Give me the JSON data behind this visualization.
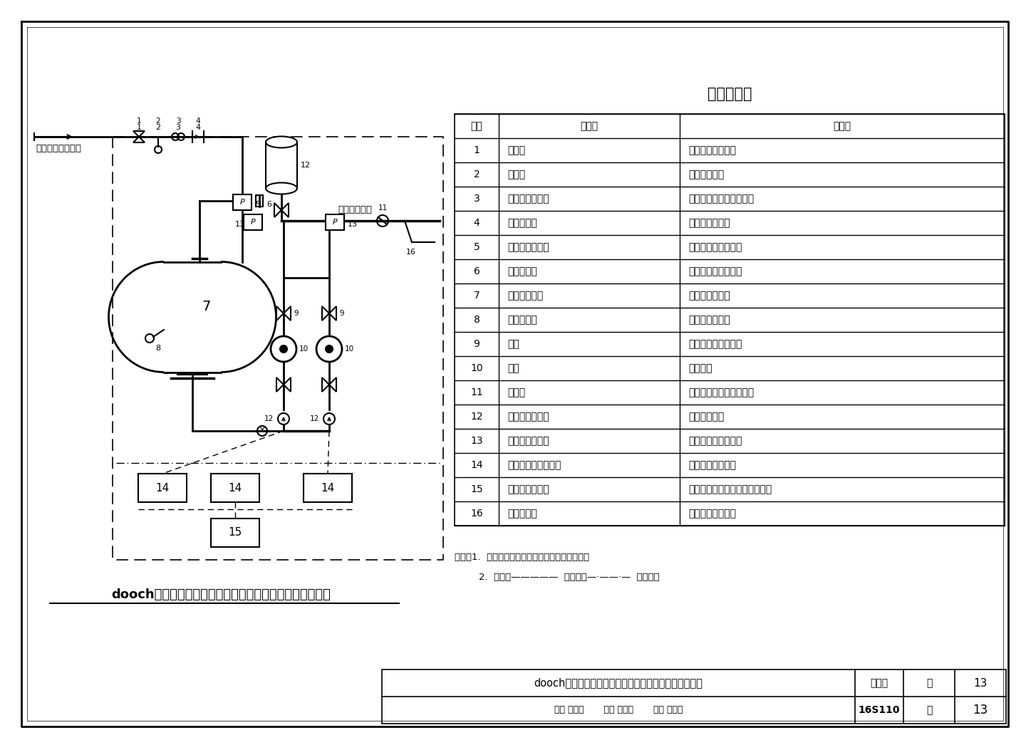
{
  "title": "dooch系列罐式全变频叠压供水设备基本组成及控制原理图",
  "table_title": "主要部件表",
  "table_headers": [
    "序号",
    "名　称",
    "用　途"
  ],
  "table_rows": [
    [
      "1",
      "控制阀",
      "进水总管控制阀门"
    ],
    [
      "2",
      "过滤器",
      "过滤管网进水"
    ],
    [
      "3",
      "可曲挠橡胶接头",
      "隔振、便于管路拆卸检修"
    ],
    [
      "4",
      "倒流防止器",
      "防止增压水回流"
    ],
    [
      "5",
      "进水压力传感器",
      "检测设备进水管压力"
    ],
    [
      "6",
      "真空抑制器",
      "防止稳流罐抽吸真空"
    ],
    [
      "7",
      "不锈钢稳流罐",
      "水泵吸水管稳流"
    ],
    [
      "8",
      "液位传感器",
      "检测稳流罐液位"
    ],
    [
      "9",
      "阀门",
      "水泵进、出水控制阀"
    ],
    [
      "10",
      "水泵",
      "增压供水"
    ],
    [
      "11",
      "止回阀",
      "防止用户管网压力水回流"
    ],
    [
      "12",
      "胶囊式气压水罐",
      "稳定系统压力"
    ],
    [
      "13",
      "出水压力传感器",
      "检测设备出水管压力"
    ],
    [
      "14",
      "数字集成变频控制器",
      "控制水泵变频运行"
    ],
    [
      "15",
      "自动控制触摸屏",
      "设定、调整及显示设备运行参数"
    ],
    [
      "16",
      "消毒器接口",
      "供连接消毒装置用"
    ]
  ],
  "note_line1": "说明：1.  图中虚线框内为厂家或套设备供货范围。",
  "note_line2": "        2.  图例：—————  控制线；—·——·—  信号线。",
  "bottom_title": "dooch系列罐式全变频叠压供水设备基本组成及控制原理",
  "bottom_label1": "图集号",
  "bottom_label2": "16S110",
  "bottom_label3": "页",
  "bottom_label4": "13",
  "bg_color": "#ffffff",
  "line_color": "#000000"
}
